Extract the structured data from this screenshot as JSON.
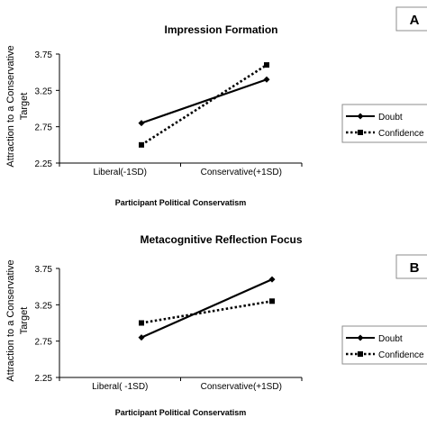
{
  "chart_data": [
    {
      "type": "line",
      "panel_letter": "A",
      "title": "Impression Formation",
      "xlabel": "Participant Political Conservatism",
      "ylabel_lines": [
        "Attraction to a Conservative",
        "Target"
      ],
      "categories": [
        "Liberal(-1SD)",
        "Conservative(+1SD)"
      ],
      "yticks": [
        "2.25",
        "2.75",
        "3.25",
        "3.75"
      ],
      "ylim": [
        2.25,
        3.75
      ],
      "series": [
        {
          "name": "Doubt",
          "values": [
            2.8,
            3.4
          ],
          "style": "solid",
          "marker": "diamond"
        },
        {
          "name": "Confidence",
          "values": [
            2.5,
            3.6
          ],
          "style": "dotted",
          "marker": "square"
        }
      ],
      "legend_position": "right",
      "grid": false
    },
    {
      "type": "line",
      "panel_letter": "B",
      "title": "Metacognitive Reflection Focus",
      "xlabel": "Participant Political Conservatism",
      "ylabel_lines": [
        "Attraction to a Conservative",
        "Target"
      ],
      "categories": [
        "Liberal( -1SD)",
        "Conservative(+1SD)"
      ],
      "yticks": [
        "2.25",
        "2.75",
        "3.25",
        "3.75"
      ],
      "ylim": [
        2.25,
        3.75
      ],
      "series": [
        {
          "name": "Doubt",
          "values": [
            2.8,
            3.6
          ],
          "style": "solid",
          "marker": "diamond"
        },
        {
          "name": "Confidence",
          "values": [
            3.0,
            3.3
          ],
          "style": "dotted",
          "marker": "square"
        }
      ],
      "legend_position": "right",
      "grid": false
    }
  ],
  "colors": {
    "line": "#000000",
    "frame": "#8c8c8c",
    "background": "#ffffff"
  }
}
